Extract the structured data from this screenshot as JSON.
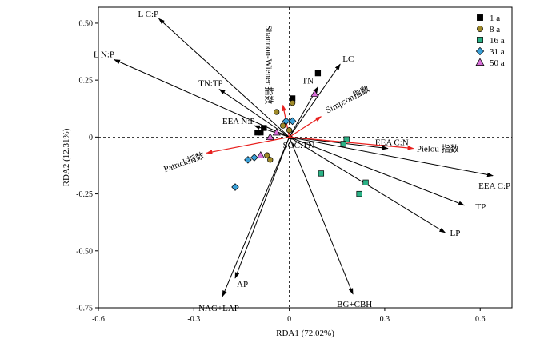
{
  "chart_data": {
    "type": "scatter",
    "title": "",
    "xlabel": "RDA1 (72.02%)",
    "ylabel": "RDA2 (12.31%)",
    "xlim": [
      -0.6,
      0.7
    ],
    "ylim": [
      -0.75,
      0.57
    ],
    "x_ticks": [
      "-0.6",
      "-0.3",
      "0",
      "0.3",
      "0.6"
    ],
    "x_tick_values": [
      -0.6,
      -0.3,
      0,
      0.3,
      0.6
    ],
    "y_ticks": [
      "0.50",
      "0.25",
      "0",
      "-0.25",
      "-0.50",
      "-0.75"
    ],
    "y_tick_values": [
      0.5,
      0.25,
      0,
      -0.25,
      -0.5,
      -0.75
    ],
    "reference_lines": "dashed lines at x=0 and y=0",
    "grid": false,
    "legend_position": "top-right",
    "env_vectors_color": "#000000",
    "species_vectors_color": "#e8201e",
    "env_vectors": [
      {
        "label": "L C:P",
        "x": -0.41,
        "y": 0.52
      },
      {
        "label": "L N:P",
        "x": -0.55,
        "y": 0.34
      },
      {
        "label": "TN:TP",
        "x": -0.22,
        "y": 0.21
      },
      {
        "label": "EEA N:P",
        "x": -0.11,
        "y": 0.05
      },
      {
        "label": "LC",
        "x": 0.16,
        "y": 0.32
      },
      {
        "label": "TN",
        "x": 0.09,
        "y": 0.22
      },
      {
        "label": "SOC:TN",
        "x": 0.02,
        "y": -0.01
      },
      {
        "label": "EEA C:N",
        "x": 0.31,
        "y": -0.05
      },
      {
        "label": "EEA C:P",
        "x": 0.64,
        "y": -0.17
      },
      {
        "label": "TP",
        "x": 0.55,
        "y": -0.3
      },
      {
        "label": "LP",
        "x": 0.49,
        "y": -0.42
      },
      {
        "label": "BG+CBH",
        "x": 0.2,
        "y": -0.69
      },
      {
        "label": "AP",
        "x": -0.17,
        "y": -0.62
      },
      {
        "label": "NAG+LAP",
        "x": -0.21,
        "y": -0.7
      }
    ],
    "species_vectors": [
      {
        "label": "Shannon-Wiener 指数",
        "x": -0.02,
        "y": 0.14
      },
      {
        "label": "Simpson指数",
        "x": 0.1,
        "y": 0.09
      },
      {
        "label": "Patrick指数",
        "x": -0.26,
        "y": -0.07
      },
      {
        "label": "Pielou 指数",
        "x": 0.39,
        "y": -0.05
      }
    ],
    "series": [
      {
        "name": "1 a",
        "marker": "square",
        "color": "#000000",
        "points": [
          [
            0.09,
            0.28
          ],
          [
            0.01,
            0.17
          ],
          [
            -0.08,
            0.04
          ],
          [
            -0.1,
            0.02
          ],
          [
            -0.09,
            0.02
          ]
        ]
      },
      {
        "name": "8 a",
        "marker": "circle",
        "color": "#a08b2a",
        "points": [
          [
            -0.04,
            0.11
          ],
          [
            0.01,
            0.15
          ],
          [
            -0.02,
            0.05
          ],
          [
            -0.07,
            -0.08
          ],
          [
            -0.06,
            -0.1
          ],
          [
            0.0,
            0.03
          ]
        ]
      },
      {
        "name": "16 a",
        "marker": "square",
        "color": "#2bb286",
        "points": [
          [
            0.18,
            -0.01
          ],
          [
            0.17,
            -0.03
          ],
          [
            0.1,
            -0.16
          ],
          [
            0.24,
            -0.2
          ],
          [
            0.22,
            -0.25
          ]
        ]
      },
      {
        "name": "31 a",
        "marker": "diamond",
        "color": "#3aa0d8",
        "points": [
          [
            0.01,
            0.07
          ],
          [
            -0.01,
            0.07
          ],
          [
            -0.13,
            -0.1
          ],
          [
            -0.11,
            -0.09
          ],
          [
            -0.17,
            -0.22
          ]
        ]
      },
      {
        "name": "50 a",
        "marker": "triangle",
        "color": "#d86fd8",
        "points": [
          [
            0.08,
            0.19
          ],
          [
            -0.04,
            0.02
          ],
          [
            -0.06,
            0.0
          ],
          [
            -0.09,
            -0.08
          ]
        ]
      }
    ]
  }
}
